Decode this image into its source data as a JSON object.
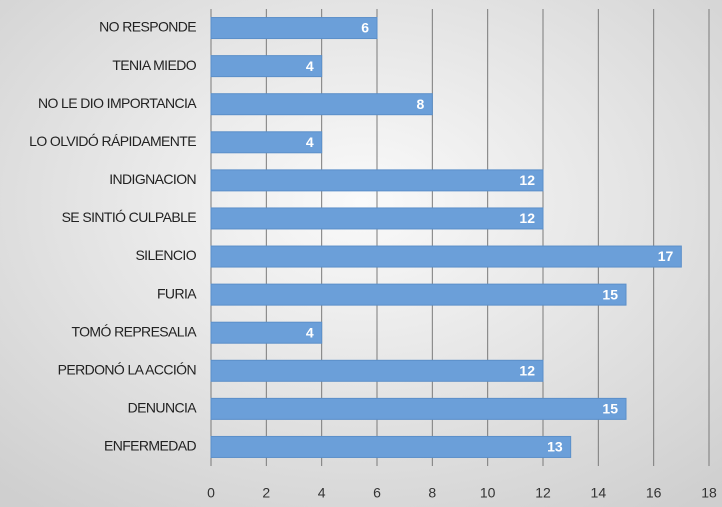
{
  "chart_data": {
    "type": "hbar",
    "categories": [
      "NO RESPONDE",
      "TENIA MIEDO",
      "NO LE DIO IMPORTANCIA",
      "LO OLVIDÓ RÁPIDAMENTE",
      "INDIGNACION",
      "SE SINTIÓ CULPABLE",
      "SILENCIO",
      "FURIA",
      "TOMÓ REPRESALIA",
      "PERDONÓ LA ACCIÓN",
      "DENUNCIA",
      "ENFERMEDAD"
    ],
    "values": [
      6,
      4,
      8,
      4,
      12,
      12,
      17,
      15,
      4,
      12,
      15,
      13
    ],
    "color": "#6b9fd9",
    "xlim": [
      0,
      18
    ],
    "xticks": [
      0,
      2,
      4,
      6,
      8,
      10,
      12,
      14,
      16,
      18
    ],
    "grid": true
  }
}
